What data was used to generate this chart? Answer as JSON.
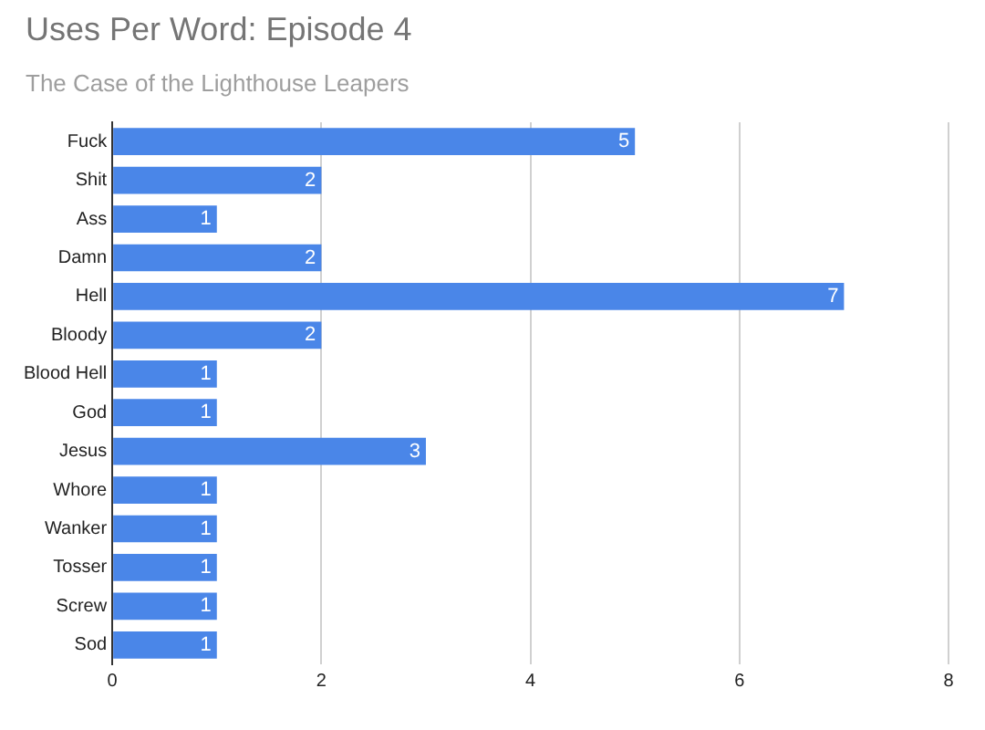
{
  "chart_data": {
    "type": "bar",
    "orientation": "horizontal",
    "title": "Uses Per Word: Episode 4",
    "subtitle": "The Case of the Lighthouse Leapers",
    "categories": [
      "Fuck",
      "Shit",
      "Ass",
      "Damn",
      "Hell",
      "Bloody",
      "Blood Hell",
      "God",
      "Jesus",
      "Whore",
      "Wanker",
      "Tosser",
      "Screw",
      "Sod"
    ],
    "values": [
      5,
      2,
      1,
      2,
      7,
      2,
      1,
      1,
      3,
      1,
      1,
      1,
      1,
      1
    ],
    "color": "#4a86e8",
    "xlim": [
      0,
      8
    ],
    "xticks": [
      0,
      2,
      4,
      6,
      8
    ],
    "grid": "x",
    "data_labels": true
  }
}
